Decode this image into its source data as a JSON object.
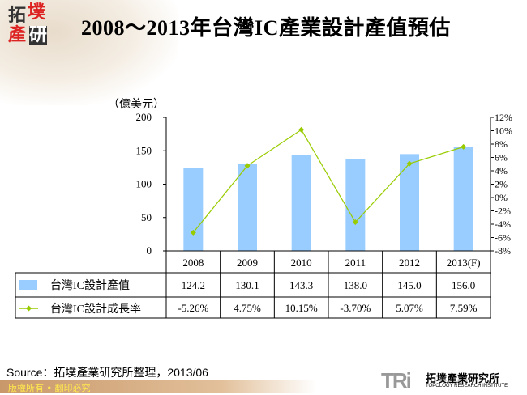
{
  "logo": {
    "chars": [
      "拓",
      "墣",
      "產",
      "研"
    ]
  },
  "title": "2008～2013年台灣IC產業設計產值預估",
  "chart_data": {
    "type": "bar+line",
    "categories": [
      "2008",
      "2009",
      "2010",
      "2011",
      "2012",
      "2013(F)"
    ],
    "left_axis": {
      "label": "（億美元）",
      "range": [
        0,
        200
      ],
      "ticks": [
        "0",
        "50",
        "100",
        "150",
        "200"
      ]
    },
    "right_axis": {
      "range": [
        -8,
        12
      ],
      "ticks": [
        "-8%",
        "-6%",
        "-4%",
        "-2%",
        "0%",
        "2%",
        "4%",
        "6%",
        "8%",
        "10%",
        "12%"
      ]
    },
    "series": [
      {
        "name": "台灣IC設計產值",
        "type": "bar",
        "axis": "left",
        "color": "#99ccff",
        "values": [
          124.2,
          130.1,
          143.3,
          138.0,
          145.0,
          156.0
        ],
        "labels": [
          "124.2",
          "130.1",
          "143.3",
          "138.0",
          "145.0",
          "156.0"
        ]
      },
      {
        "name": "台灣IC設計成長率",
        "type": "line",
        "axis": "right",
        "color": "#99cc00",
        "values": [
          -5.26,
          4.75,
          10.15,
          -3.7,
          5.07,
          7.59
        ],
        "labels": [
          "-5.26%",
          "4.75%",
          "10.15%",
          "-3.70%",
          "5.07%",
          "7.59%"
        ]
      }
    ],
    "grid": false,
    "legend": "data table"
  },
  "source": "Source：拓墣產業研究所整理，2013/06",
  "footer": "版權所有 • 翻印必究",
  "brand": {
    "mark": "TRi",
    "name": "拓墣產業研究所",
    "english": "TOPOLOGY RESEARCH INSTITUTE"
  }
}
